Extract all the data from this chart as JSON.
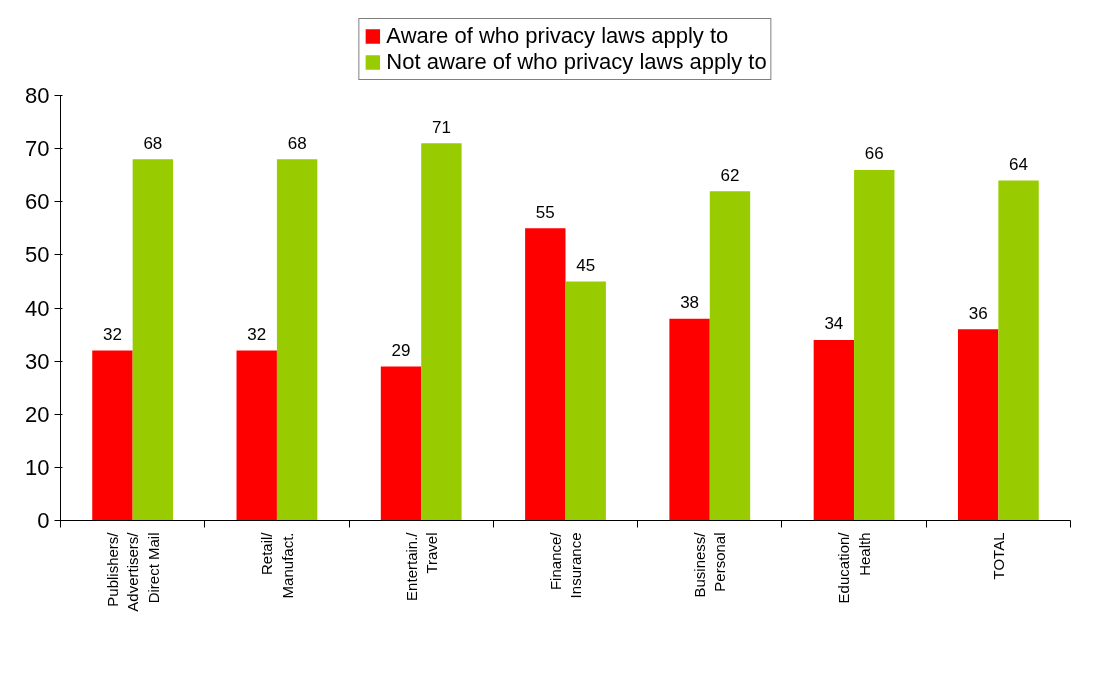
{
  "chart_data": {
    "type": "bar",
    "categories": [
      "Publishers/\nAdvertisers/\nDirect Mail",
      "Retail/\nManufact.",
      "Entertain./\nTravel",
      "Finance/\nInsurance",
      "Business/\nPersonal",
      "Education/\nHealth",
      "TOTAL"
    ],
    "series": [
      {
        "name": "Aware of who privacy laws apply to",
        "color": "#ff0000",
        "values": [
          32,
          32,
          29,
          55,
          38,
          34,
          36
        ]
      },
      {
        "name": "Not aware of who privacy laws apply to",
        "color": "#99cc00",
        "values": [
          68,
          68,
          71,
          45,
          62,
          66,
          64
        ]
      }
    ],
    "ylim": [
      0,
      80
    ],
    "yticks": [
      0,
      10,
      20,
      30,
      40,
      50,
      60,
      70,
      80
    ],
    "data_labels": true,
    "grid": false,
    "legend": "top"
  }
}
